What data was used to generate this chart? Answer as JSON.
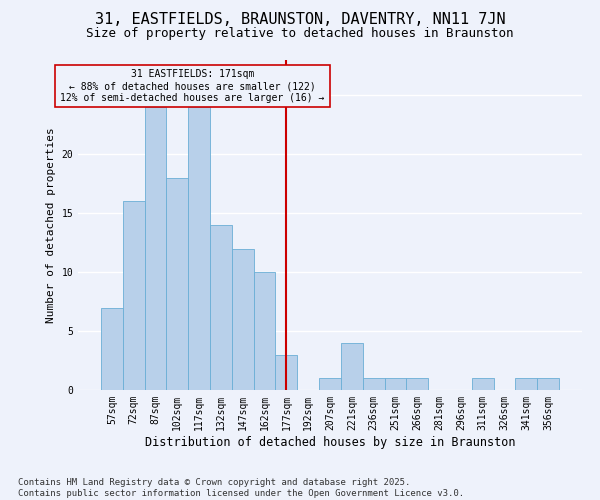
{
  "title1": "31, EASTFIELDS, BRAUNSTON, DAVENTRY, NN11 7JN",
  "title2": "Size of property relative to detached houses in Braunston",
  "xlabel": "Distribution of detached houses by size in Braunston",
  "ylabel": "Number of detached properties",
  "categories": [
    "57sqm",
    "72sqm",
    "87sqm",
    "102sqm",
    "117sqm",
    "132sqm",
    "147sqm",
    "162sqm",
    "177sqm",
    "192sqm",
    "207sqm",
    "221sqm",
    "236sqm",
    "251sqm",
    "266sqm",
    "281sqm",
    "296sqm",
    "311sqm",
    "326sqm",
    "341sqm",
    "356sqm"
  ],
  "values": [
    7,
    16,
    24,
    18,
    24,
    14,
    12,
    10,
    3,
    0,
    1,
    4,
    1,
    1,
    1,
    0,
    0,
    1,
    0,
    1,
    1
  ],
  "bar_color": "#b8d0ea",
  "bar_edge_color": "#6aaed6",
  "bar_linewidth": 0.6,
  "vline_index": 8,
  "vline_color": "#cc0000",
  "annotation_text": "31 EASTFIELDS: 171sqm\n← 88% of detached houses are smaller (122)\n12% of semi-detached houses are larger (16) →",
  "annotation_box_edge": "#cc0000",
  "background_color": "#eef2fb",
  "grid_color": "#ffffff",
  "ylim": [
    0,
    28
  ],
  "yticks": [
    0,
    5,
    10,
    15,
    20,
    25
  ],
  "footer_text": "Contains HM Land Registry data © Crown copyright and database right 2025.\nContains public sector information licensed under the Open Government Licence v3.0.",
  "title1_fontsize": 11,
  "title2_fontsize": 9,
  "xlabel_fontsize": 8.5,
  "ylabel_fontsize": 8,
  "tick_fontsize": 7,
  "annot_fontsize": 7,
  "footer_fontsize": 6.5
}
